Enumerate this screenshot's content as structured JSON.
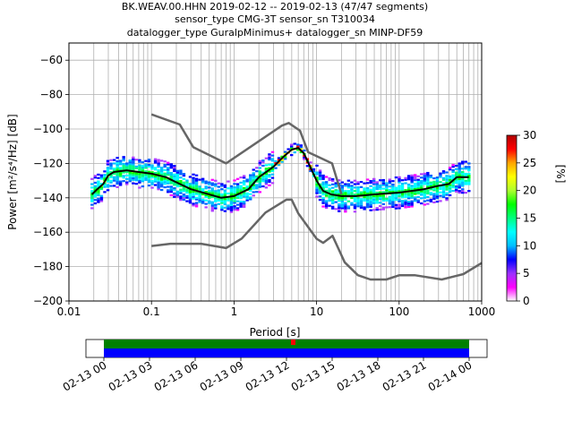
{
  "title_lines": [
    "BK.WEAV.00.HHN   2019-02-12 -- 2019-02-13  (47/47 segments)",
    "sensor_type CMG-3T sensor_sn T310034",
    "datalogger_type GuralpMinimus+ datalogger_sn MINP-DF59"
  ],
  "colorbar": {
    "label": "[%]",
    "ticks": [
      "0",
      "5",
      "10",
      "15",
      "20",
      "25",
      "30"
    ],
    "range": [
      0,
      30
    ],
    "colors": [
      "#ffffff",
      "#ff00ff",
      "#9b30ff",
      "#0000ff",
      "#00bfff",
      "#00ffff",
      "#00ff7f",
      "#00ff00",
      "#adff2f",
      "#ffff00",
      "#ffa500",
      "#ff0000",
      "#b00000"
    ]
  },
  "timeline": {
    "ticks": [
      "02-13 00",
      "02-13 03",
      "02-13 06",
      "02-13 09",
      "02-13 12",
      "02-13 15",
      "02-13 18",
      "02-13 21",
      "02-14 00"
    ],
    "band_colors": {
      "top": "#008000",
      "bottom": "#0000ff",
      "marker": "#ff0000"
    }
  },
  "chart_data": {
    "type": "heatmap",
    "title": "BK.WEAV.00.HHN   2019-02-12 -- 2019-02-13  (47/47 segments)",
    "xlabel": "Period [s]",
    "ylabel": "Power [m²/s⁴/Hz] [dB]",
    "xscale": "log",
    "xlim": [
      0.01,
      1000
    ],
    "ylim": [
      -200,
      -50
    ],
    "x_ticks": [
      "0.01",
      "0.1",
      "1",
      "10",
      "100",
      "1000"
    ],
    "y_ticks": [
      "−200",
      "−180",
      "−160",
      "−140",
      "−120",
      "−100",
      "−80",
      "−60"
    ],
    "grid": true,
    "series": [
      {
        "name": "",
        "role": "mean",
        "color": "#000000",
        "x": [
          0.019,
          0.022,
          0.026,
          0.03,
          0.035,
          0.05,
          0.07,
          0.1,
          0.15,
          0.2,
          0.3,
          0.5,
          0.7,
          1.0,
          1.5,
          2.0,
          3.0,
          4.0,
          5.0,
          6.0,
          7.0,
          8.0,
          10.0,
          12.0,
          15.0,
          20.0,
          30.0,
          50.0,
          100.0,
          200.0,
          300.0,
          400.0,
          500.0,
          700.0
        ],
        "y": [
          -138,
          -135,
          -132,
          -127,
          -125,
          -124,
          -125,
          -126,
          -128,
          -131,
          -135,
          -138,
          -140,
          -139,
          -135,
          -128,
          -122,
          -116,
          -112,
          -111,
          -114,
          -120,
          -130,
          -136,
          -138,
          -139,
          -139,
          -138,
          -137,
          -135,
          -133,
          -132,
          -128,
          -128
        ]
      },
      {
        "name": "",
        "role": "high_noise_model",
        "color": "#666666",
        "x": [
          0.1,
          0.22,
          0.32,
          0.8,
          3.8,
          4.6,
          6.3,
          7.9,
          15.4,
          20
        ],
        "y": [
          -91.5,
          -97.4,
          -110.5,
          -120,
          -98,
          -96.5,
          -101,
          -113.5,
          -120,
          -138
        ]
      },
      {
        "name": "",
        "role": "low_noise_model",
        "color": "#666666",
        "x": [
          0.1,
          0.17,
          0.4,
          0.8,
          1.24,
          2.4,
          4.3,
          5.0,
          6.0,
          10.0,
          12.0,
          15.6,
          21.9,
          31.6,
          45.0,
          70.0,
          101,
          154,
          328,
          600,
          1000
        ],
        "y": [
          -168,
          -166.7,
          -166.7,
          -169.2,
          -163.7,
          -148.6,
          -141.1,
          -141.1,
          -149.0,
          -163.8,
          -166.2,
          -162.1,
          -177.5,
          -185.0,
          -187.5,
          -187.5,
          -185.0,
          -185.0,
          -187.5,
          -184.4,
          -177.9
        ]
      }
    ],
    "heatmap_density": {
      "note": "probability density of power values per period",
      "unit": "%",
      "range": [
        0,
        30
      ]
    }
  }
}
